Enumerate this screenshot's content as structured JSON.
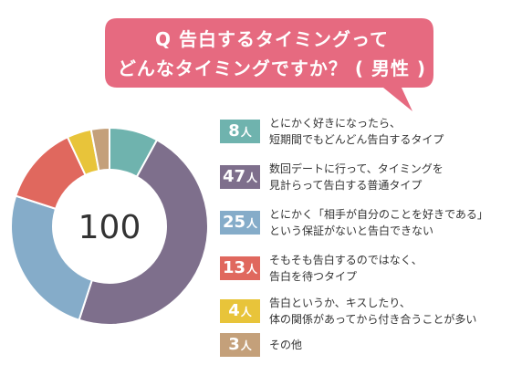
{
  "title": {
    "line1": "Q 告白するタイミングって",
    "line2": "どんなタイミングですか？ ( 男性 )"
  },
  "colors": {
    "bubble": "#e66a80",
    "text": "#333333"
  },
  "chart_data": {
    "type": "pie",
    "style": "donut",
    "center_label": "100",
    "unit": "人",
    "slices": [
      {
        "value": 8,
        "label": "とにかく好きになったら、\n短期間でもどんどん告白するタイプ",
        "color": "#6fb3ae"
      },
      {
        "value": 47,
        "label": "数回デートに行って、タイミングを\n見計らって告白する普通タイプ",
        "color": "#7e6f8c"
      },
      {
        "value": 25,
        "label": "とにかく「相手が自分のことを好きである」\nという保証がないと告白できない",
        "color": "#85acc9"
      },
      {
        "value": 13,
        "label": "そもそも告白するのではなく、\n告白を待つタイプ",
        "color": "#e0685e"
      },
      {
        "value": 4,
        "label": "告白というか、キスしたり、\n体の関係があってから付き合うことが多い",
        "color": "#e8c43a"
      },
      {
        "value": 3,
        "label": "その他",
        "color": "#c4a07a"
      }
    ]
  }
}
